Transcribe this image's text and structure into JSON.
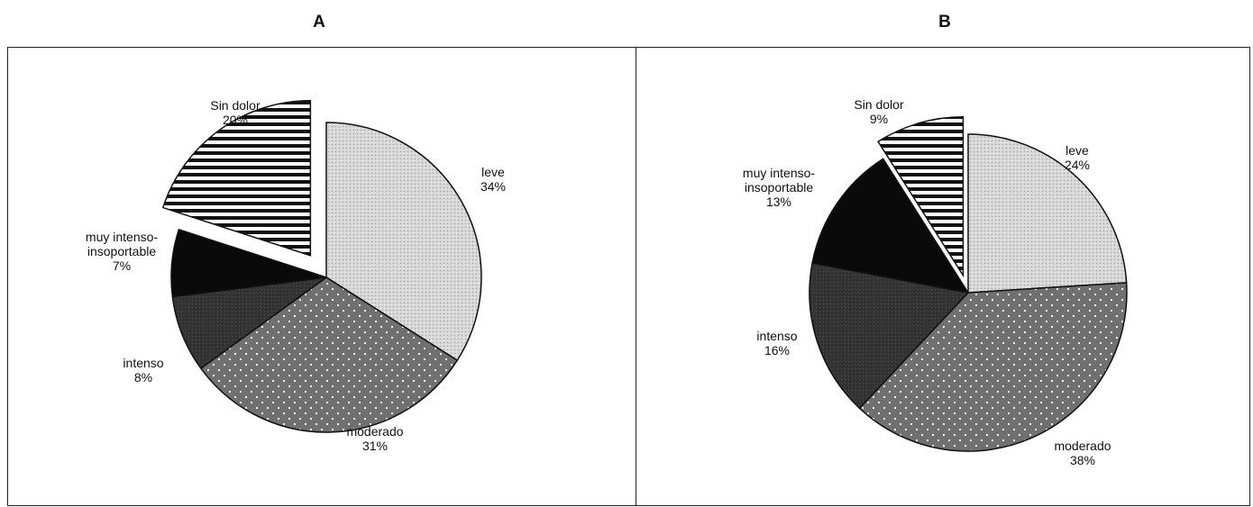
{
  "chart_data": [
    {
      "type": "pie",
      "title": "A",
      "slices": [
        {
          "label": "Sin dolor",
          "value": 20,
          "pct_label": "20%",
          "exploded": true,
          "pattern": "stripes"
        },
        {
          "label": "leve",
          "value": 34,
          "pct_label": "34%",
          "exploded": false,
          "pattern": "light-stipple"
        },
        {
          "label": "moderado",
          "value": 31,
          "pct_label": "31%",
          "exploded": false,
          "pattern": "dots"
        },
        {
          "label": "intenso",
          "value": 8,
          "pct_label": "8%",
          "exploded": false,
          "pattern": "dark-gray"
        },
        {
          "label": "muy intenso-\ninsoportable",
          "value": 7,
          "pct_label": "7%",
          "exploded": false,
          "pattern": "black"
        }
      ]
    },
    {
      "type": "pie",
      "title": "B",
      "slices": [
        {
          "label": "Sin dolor",
          "value": 9,
          "pct_label": "9%",
          "exploded": true,
          "pattern": "stripes"
        },
        {
          "label": "leve",
          "value": 24,
          "pct_label": "24%",
          "exploded": false,
          "pattern": "light-stipple"
        },
        {
          "label": "moderado",
          "value": 38,
          "pct_label": "38%",
          "exploded": false,
          "pattern": "dots"
        },
        {
          "label": "intenso",
          "value": 16,
          "pct_label": "16%",
          "exploded": false,
          "pattern": "dark-gray"
        },
        {
          "label": "muy intenso-\ninsoportable",
          "value": 13,
          "pct_label": "13%",
          "exploded": false,
          "pattern": "black"
        }
      ]
    }
  ]
}
